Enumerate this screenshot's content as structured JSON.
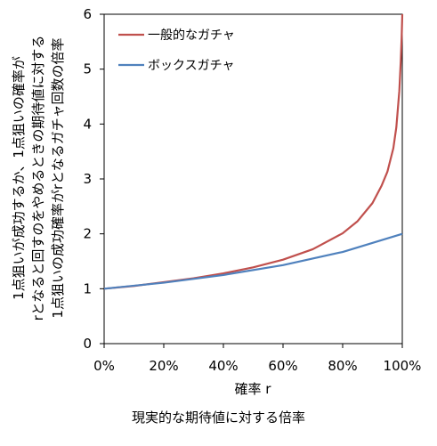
{
  "chart_data": {
    "type": "line",
    "title": "",
    "xlabel": "確率 r",
    "ylabel_lines": [
      "1点狙いが成功するか、1点狙いの確率が",
      "rとなると回すのをやめるときの期待値に対する",
      "1点狙いの成功確率がrとなるガチャ回数の倍率"
    ],
    "xlim": [
      0,
      1
    ],
    "ylim": [
      0,
      6
    ],
    "xticks": [
      0,
      0.2,
      0.4,
      0.6,
      0.8,
      1.0
    ],
    "xtick_labels": [
      "0%",
      "20%",
      "40%",
      "60%",
      "80%",
      "100%"
    ],
    "yticks": [
      0,
      1,
      2,
      3,
      4,
      5,
      6
    ],
    "ytick_labels": [
      "0",
      "1",
      "2",
      "3",
      "4",
      "5",
      "6"
    ],
    "grid": false,
    "legend_position": "top-left",
    "series": [
      {
        "name": "一般的なガチャ",
        "color": "#c0504d",
        "x": [
          0,
          0.1,
          0.2,
          0.3,
          0.4,
          0.5,
          0.6,
          0.7,
          0.8,
          0.85,
          0.9,
          0.93,
          0.95,
          0.97,
          0.98,
          0.99,
          0.995,
          0.998,
          1.0
        ],
        "values": [
          1.0,
          1.05,
          1.12,
          1.19,
          1.28,
          1.39,
          1.53,
          1.72,
          2.01,
          2.23,
          2.56,
          2.87,
          3.13,
          3.56,
          3.94,
          4.6,
          5.16,
          5.6,
          6.0
        ]
      },
      {
        "name": "ボックスガチャ",
        "color": "#4f81bd",
        "x": [
          0,
          0.2,
          0.4,
          0.6,
          0.8,
          1.0
        ],
        "values": [
          1.0,
          1.11,
          1.25,
          1.43,
          1.67,
          2.0
        ]
      }
    ]
  },
  "caption": "現実的な期待値に対する倍率"
}
